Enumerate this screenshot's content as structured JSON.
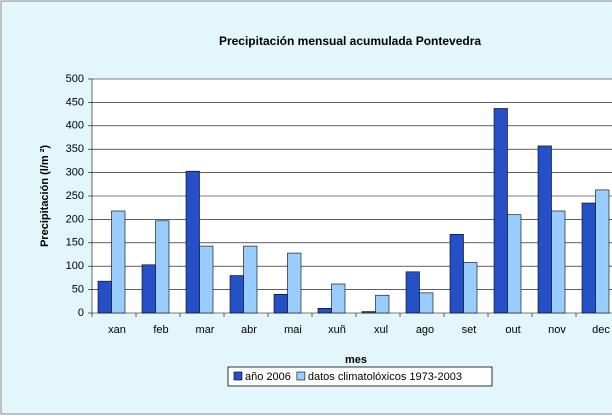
{
  "chart_data": {
    "type": "bar",
    "title": "Precipitación mensual acumulada  Pontevedra",
    "x_label": "mes",
    "y_label": "Precipitación (l/m ²)",
    "categories": [
      "xan",
      "feb",
      "mar",
      "abr",
      "mai",
      "xuñ",
      "xul",
      "ago",
      "set",
      "out",
      "nov",
      "dec"
    ],
    "series": [
      {
        "name": "año 2006",
        "color": "#2650c8",
        "values": [
          68,
          103,
          303,
          80,
          40,
          10,
          3,
          88,
          168,
          437,
          357,
          235
        ]
      },
      {
        "name": "datos climatolóxicos 1973-2003",
        "color": "#99ccff",
        "values": [
          218,
          197,
          143,
          143,
          128,
          62,
          38,
          43,
          108,
          210,
          218,
          263
        ]
      }
    ],
    "ylim": [
      0,
      500
    ],
    "yticks": [
      0,
      50,
      100,
      150,
      200,
      250,
      300,
      350,
      400,
      450,
      500
    ],
    "grid": true,
    "legend": "bottom"
  }
}
